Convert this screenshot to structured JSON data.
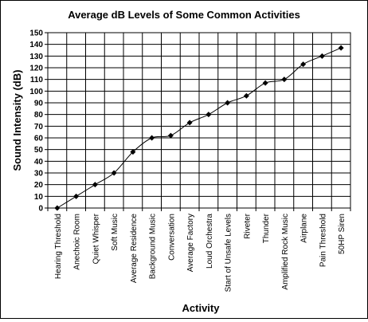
{
  "chart_data": {
    "type": "line",
    "title": "Average dB Levels of Some Common Activities",
    "xlabel": "Activity",
    "ylabel": "Sound Intensity (dB)",
    "ylim": [
      0,
      150
    ],
    "yticks": [
      0,
      10,
      20,
      30,
      40,
      50,
      60,
      70,
      80,
      90,
      100,
      110,
      120,
      130,
      140,
      150
    ],
    "grid": true,
    "legend": "none",
    "marker": "diamond",
    "colors": {
      "line": "#000000",
      "grid": "#000000",
      "background": "#ffffff"
    },
    "categories": [
      "Hearing Threshold",
      "Anechoic Room",
      "Quiet Whisper",
      "Soft Music",
      "Average Residence",
      "Background Music",
      "Conversation",
      "Average Factory",
      "Loud Orchestra",
      "Start of Unsafe Levels",
      "Riveter",
      "Thunder",
      "Amplified Rock Music",
      "Airplane",
      "Pain Threshold",
      "50HP Siren"
    ],
    "values": [
      0,
      10,
      20,
      30,
      48,
      60,
      62,
      73,
      80,
      90,
      96,
      107,
      110,
      123,
      130,
      137
    ]
  }
}
